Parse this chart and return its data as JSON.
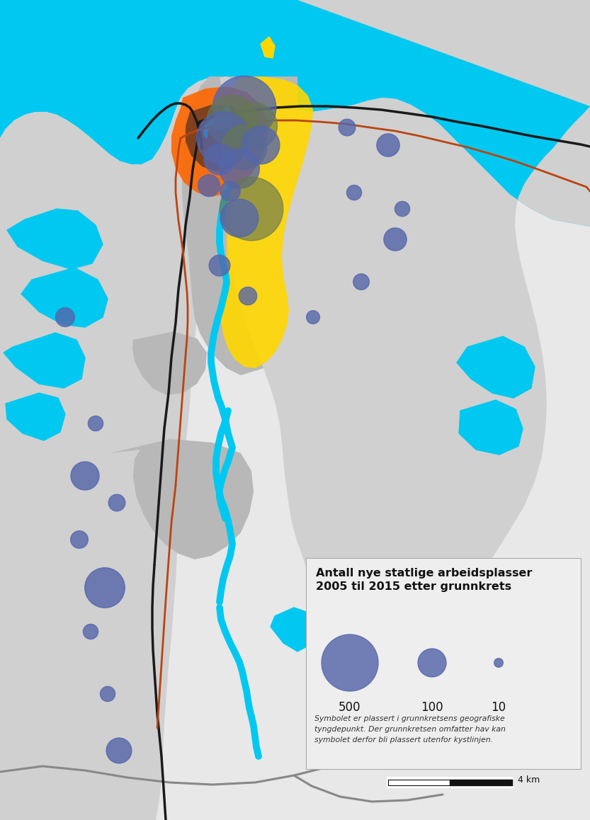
{
  "background_color": "#e8e8e8",
  "water_color": "#00c8f0",
  "land_light_color": "#d0d0d0",
  "land_dark_color": "#b8b8b8",
  "yellow_zone_color": "#FFD700",
  "orange_zone_color": "#FF6600",
  "dark_brown_color": "#5a3322",
  "circle_color": "#5566aa",
  "olive_circle_color": "#667755",
  "road_black_color": "#1a1a1a",
  "road_red_color": "#bb4411",
  "legend_bg": "#ebebeb",
  "legend_border": "#aaaaaa",
  "legend_title": "Antall nye statlige arbeidsplasser\n2005 til 2015 etter grunnkrets",
  "legend_sizes": [
    500,
    100,
    10
  ],
  "legend_labels": [
    "500",
    "100",
    "10"
  ],
  "footnote_lines": [
    "Symbolet er plassert i grunnkretsens geografiske",
    "tyngdepunkt. Der grunnkretsen omfatter hav kan",
    "symbolet derfor bli plassert utenfor kystlinjen."
  ],
  "scalebar_label": "4 km",
  "figsize": [
    8.33,
    11.58
  ],
  "dpi": 100
}
